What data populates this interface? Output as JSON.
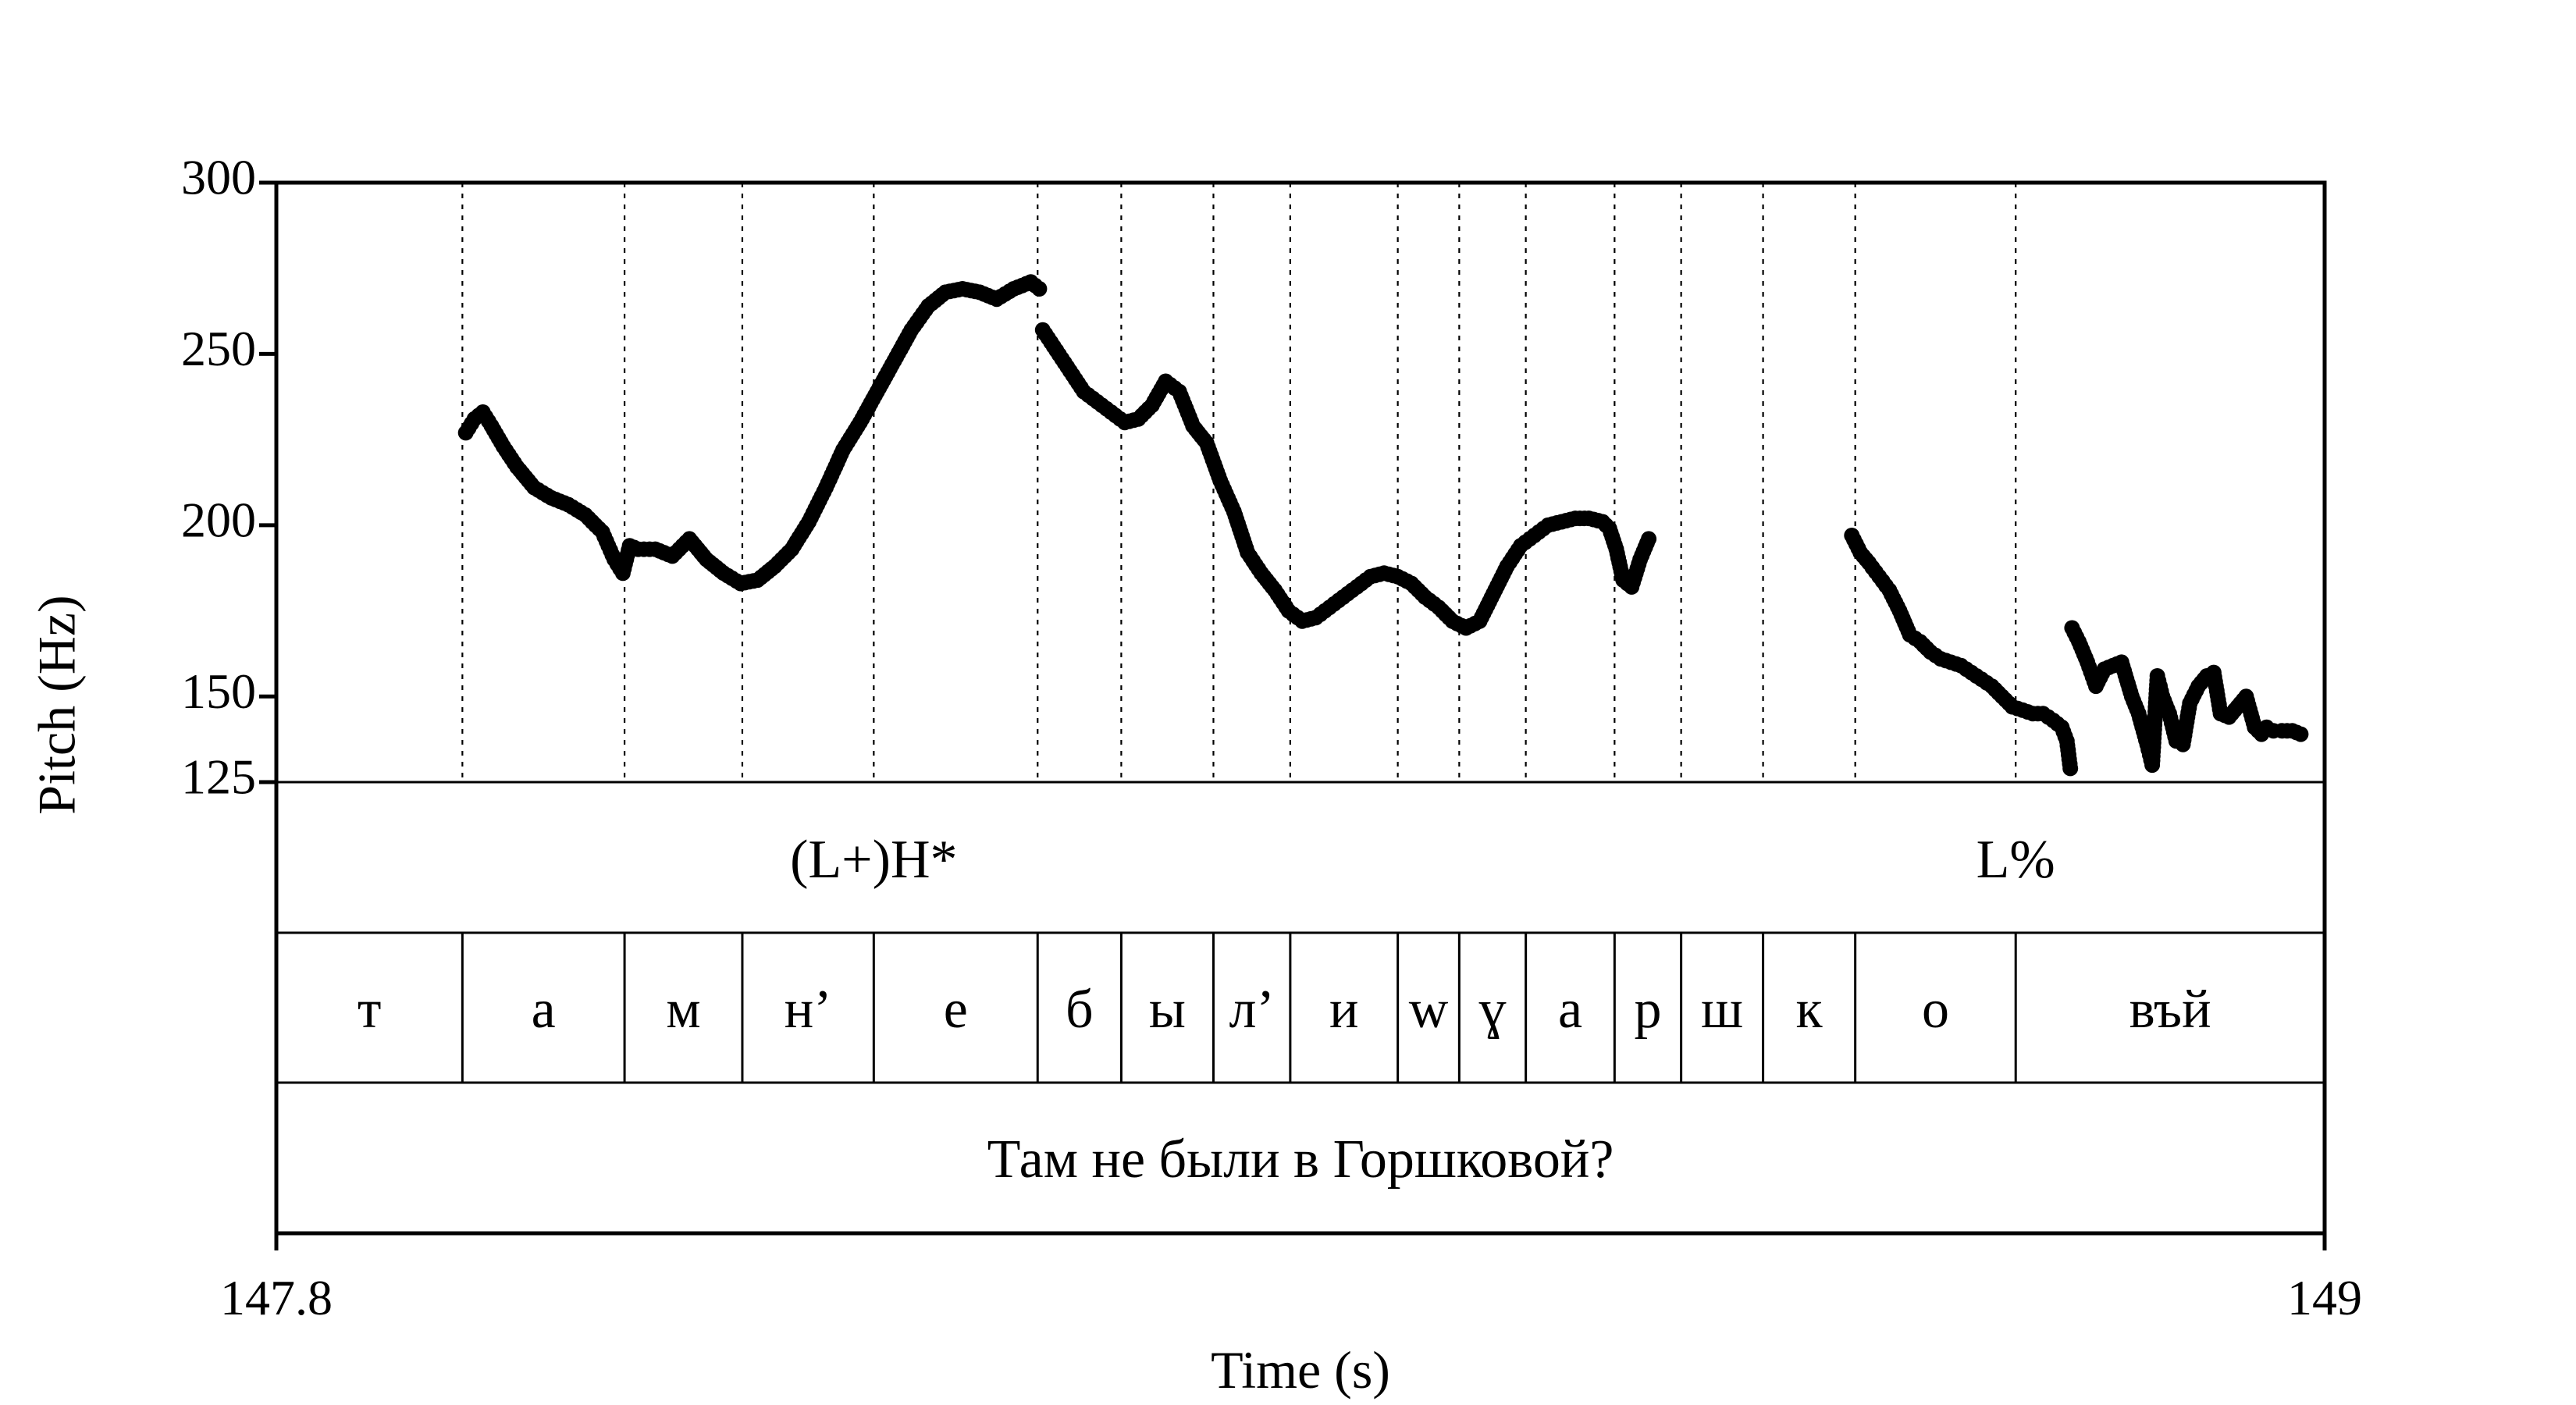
{
  "chart_data": {
    "type": "scatter",
    "xlabel": "Time (s)",
    "ylabel": "Pitch (Hz)",
    "xlim": [
      147.8,
      149
    ],
    "ylim": [
      125,
      300
    ],
    "x_tick_labels": [
      "147.8",
      "149"
    ],
    "y_ticks": [
      125,
      150,
      200,
      250,
      300
    ],
    "y_tick_labels": [
      "125",
      "150",
      "200",
      "250",
      "300"
    ],
    "grid": "dotted vertical lines at segment boundaries",
    "segment_boundaries": [
      147.909,
      148.004,
      148.073,
      148.15,
      148.246,
      148.295,
      148.349,
      148.394,
      148.457,
      148.493,
      148.532,
      148.584,
      148.623,
      148.671,
      148.725,
      148.819
    ],
    "tones": [
      {
        "label": "(L+)H*",
        "time": 148.15
      },
      {
        "label": "L%",
        "time": 148.819
      }
    ],
    "segments": [
      {
        "label": "т",
        "start": 147.8,
        "end": 147.909
      },
      {
        "label": "а",
        "start": 147.909,
        "end": 148.004
      },
      {
        "label": "м",
        "start": 148.004,
        "end": 148.073
      },
      {
        "label": "н’",
        "start": 148.073,
        "end": 148.15
      },
      {
        "label": "е",
        "start": 148.15,
        "end": 148.246
      },
      {
        "label": "б",
        "start": 148.246,
        "end": 148.295
      },
      {
        "label": "ы",
        "start": 148.295,
        "end": 148.349
      },
      {
        "label": "л’",
        "start": 148.349,
        "end": 148.394
      },
      {
        "label": "и",
        "start": 148.394,
        "end": 148.457
      },
      {
        "label": "w",
        "start": 148.457,
        "end": 148.493
      },
      {
        "label": "ɣ",
        "start": 148.493,
        "end": 148.532
      },
      {
        "label": "а",
        "start": 148.532,
        "end": 148.584
      },
      {
        "label": "р",
        "start": 148.584,
        "end": 148.623
      },
      {
        "label": "ш",
        "start": 148.623,
        "end": 148.671
      },
      {
        "label": "к",
        "start": 148.671,
        "end": 148.725
      },
      {
        "label": "о",
        "start": 148.725,
        "end": 148.819
      },
      {
        "label": "въй",
        "start": 148.819,
        "end": 149.0
      }
    ],
    "sentence": {
      "label": "Там не были в Горшковой?",
      "start": 147.8,
      "end": 149.0
    },
    "pitch_contours": [
      {
        "x": [
          147.911,
          147.916,
          147.921,
          147.926,
          147.933,
          147.941,
          147.951,
          147.961,
          147.971,
          147.981,
          147.991,
          147.998,
          148.003,
          148.007,
          148.012,
          148.022,
          148.032,
          148.042,
          148.052,
          148.062,
          148.072,
          148.082,
          148.092,
          148.102,
          148.112,
          148.122,
          148.132,
          148.142,
          148.152,
          148.162,
          148.172,
          148.182,
          148.192,
          148.202,
          148.212,
          148.222,
          148.232,
          148.242,
          148.247
        ],
        "y": [
          227,
          231,
          233,
          229,
          223,
          217,
          211,
          208,
          206,
          203,
          198,
          190,
          186,
          194,
          193,
          193,
          191,
          196,
          190,
          186,
          183,
          184,
          188,
          193,
          201,
          211,
          222,
          230,
          239,
          248,
          257,
          264,
          268,
          269,
          268,
          266,
          269,
          271,
          269
        ]
      },
      {
        "x": [
          148.249,
          148.257,
          148.265,
          148.273,
          148.281,
          148.289,
          148.297,
          148.305,
          148.313,
          148.321,
          148.329,
          148.337,
          148.345,
          148.353,
          148.361,
          148.369,
          148.377,
          148.385,
          148.393,
          148.401,
          148.409,
          148.417,
          148.425,
          148.433,
          148.441,
          148.449,
          148.457,
          148.465,
          148.473,
          148.481,
          148.489,
          148.497,
          148.505,
          148.513,
          148.521,
          148.529,
          148.537,
          148.545,
          148.553,
          148.561,
          148.569,
          148.577,
          148.581,
          148.585,
          148.589,
          148.594,
          148.599,
          148.604
        ],
        "y": [
          257,
          251,
          245,
          239,
          236,
          233,
          230,
          231,
          235,
          242,
          239,
          229,
          224,
          213,
          204,
          192,
          186,
          181,
          175,
          172,
          173,
          176,
          179,
          182,
          185,
          186,
          185,
          183,
          179,
          176,
          172,
          170,
          172,
          180,
          188,
          194,
          197,
          200,
          201,
          202,
          202,
          201,
          199,
          193,
          184,
          182,
          190,
          196
        ]
      },
      {
        "x": [
          148.723,
          148.728,
          148.733,
          148.739,
          148.745,
          148.751,
          148.757,
          148.763,
          148.769,
          148.775,
          148.781,
          148.787,
          148.793,
          148.799,
          148.805,
          148.811,
          148.817,
          148.823,
          148.829,
          148.835,
          148.841,
          148.846,
          148.849,
          148.851
        ],
        "y": [
          197,
          192,
          189,
          185,
          181,
          175,
          168,
          166,
          163,
          161,
          160,
          159,
          157,
          155,
          153,
          150,
          147,
          146,
          145,
          145,
          143,
          141,
          137,
          129
        ]
      },
      {
        "x": [
          148.852,
          148.856,
          148.861,
          148.866,
          148.871,
          148.876,
          148.881,
          148.887,
          148.891,
          148.896,
          148.899,
          148.902,
          148.905,
          148.909,
          148.913,
          148.917,
          148.921,
          148.926,
          148.931,
          148.935,
          148.939,
          148.944,
          148.949,
          148.954,
          148.959,
          148.963,
          148.966,
          148.97,
          148.975,
          148.981,
          148.986
        ],
        "y": [
          170,
          166,
          160,
          153,
          158,
          159,
          160,
          150,
          145,
          136,
          130,
          156,
          150,
          145,
          137,
          136,
          148,
          153,
          156,
          157,
          145,
          144,
          147,
          150,
          141,
          139,
          141,
          140,
          140,
          140,
          139
        ]
      }
    ]
  }
}
